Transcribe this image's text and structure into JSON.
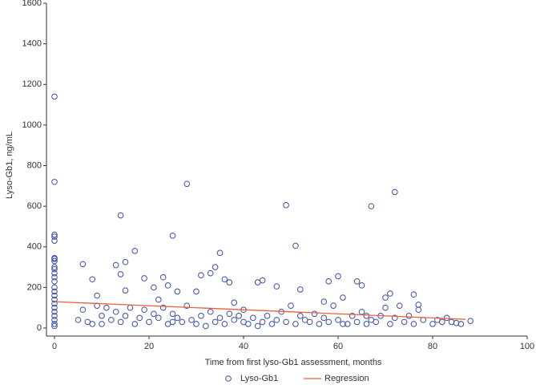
{
  "chart_data": {
    "type": "scatter",
    "xlabel": "Time from first lyso-Gb1 assessment, months",
    "ylabel": "Lyso-Gb1, ng/mL",
    "xlim": [
      0,
      100
    ],
    "xticks": [
      0,
      20,
      40,
      60,
      80,
      100
    ],
    "ylim": [
      0,
      1600
    ],
    "yticks": [
      0,
      200,
      400,
      600,
      800,
      1000,
      1200,
      1400,
      1600
    ],
    "grid": false,
    "legend": "bottom",
    "series": [
      {
        "name": "Lyso-Gb1",
        "color": "#3b4fa3",
        "x": [
          0,
          0,
          0,
          0,
          0,
          0,
          0,
          0,
          0,
          0,
          0,
          0,
          0,
          0,
          0,
          0,
          0,
          0,
          0,
          0,
          0,
          0,
          0,
          0,
          6,
          8,
          9,
          13,
          14,
          14,
          15,
          15,
          17,
          19,
          21,
          22,
          23,
          24,
          25,
          26,
          28,
          30,
          31,
          33,
          34,
          35,
          36,
          37,
          38,
          40,
          43,
          44,
          47,
          49,
          51,
          52,
          54,
          57,
          58,
          60,
          61,
          62,
          64,
          65,
          66,
          67,
          70,
          71,
          72,
          73,
          76,
          77,
          80,
          82,
          84,
          86,
          88,
          5,
          6,
          7,
          8,
          9,
          10,
          10,
          11,
          12,
          13,
          14,
          15,
          16,
          17,
          18,
          19,
          20,
          21,
          22,
          23,
          24,
          25,
          25,
          26,
          27,
          28,
          29,
          30,
          31,
          32,
          33,
          34,
          35,
          36,
          37,
          38,
          39,
          40,
          41,
          42,
          43,
          44,
          45,
          46,
          47,
          48,
          49,
          50,
          51,
          52,
          53,
          55,
          56,
          57,
          58,
          59,
          60,
          61,
          63,
          64,
          65,
          66,
          67,
          68,
          69,
          70,
          71,
          72,
          74,
          75,
          76,
          77,
          78,
          81,
          83,
          85
        ],
        "values": [
          1140,
          720,
          460,
          450,
          430,
          345,
          340,
          330,
          300,
          290,
          270,
          250,
          230,
          200,
          180,
          160,
          140,
          120,
          100,
          80,
          60,
          40,
          20,
          10,
          315,
          240,
          110,
          310,
          555,
          265,
          185,
          325,
          380,
          245,
          200,
          140,
          250,
          210,
          455,
          180,
          710,
          180,
          260,
          270,
          300,
          370,
          240,
          225,
          125,
          90,
          225,
          235,
          205,
          605,
          405,
          190,
          30,
          130,
          230,
          255,
          150,
          20,
          230,
          210,
          60,
          600,
          150,
          170,
          670,
          110,
          165,
          115,
          20,
          30,
          30,
          20,
          35,
          40,
          90,
          30,
          20,
          160,
          60,
          20,
          100,
          40,
          80,
          30,
          60,
          100,
          20,
          50,
          90,
          30,
          70,
          50,
          100,
          20,
          30,
          70,
          50,
          30,
          110,
          40,
          20,
          60,
          10,
          80,
          30,
          50,
          20,
          70,
          40,
          60,
          30,
          20,
          50,
          10,
          30,
          60,
          20,
          40,
          80,
          30,
          110,
          20,
          60,
          40,
          70,
          20,
          50,
          30,
          110,
          40,
          20,
          60,
          30,
          80,
          20,
          40,
          30,
          60,
          100,
          20,
          50,
          30,
          60,
          20,
          90,
          40,
          40,
          50,
          25
        ]
      },
      {
        "name": "Regression",
        "type": "line",
        "color": "#e8603c",
        "x": [
          0,
          87
        ],
        "values": [
          130,
          43
        ]
      }
    ]
  }
}
